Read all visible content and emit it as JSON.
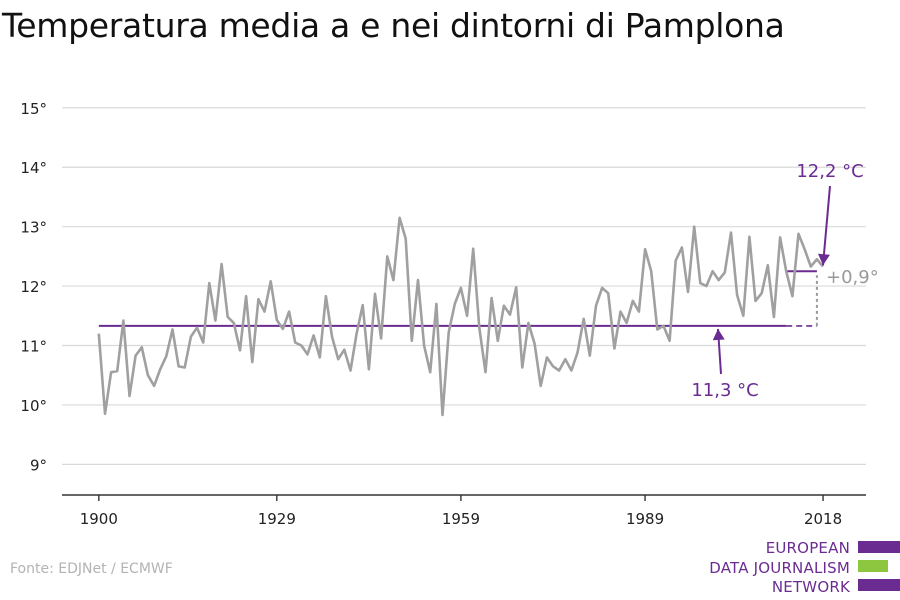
{
  "title": "Temperatura media a e nei dintorni di Pamplona",
  "source": "Fonte: EDJNet / ECMWF",
  "logo": {
    "lines": [
      "EUROPEAN",
      "DATA JOURNALISM",
      "NETWORK"
    ],
    "color_purple": "#6b2c91",
    "color_green": "#8dc63f"
  },
  "annotations": {
    "recent_avg": "12,2 °C",
    "base_avg": "11,3 °C",
    "delta": "+0,9°"
  },
  "colors": {
    "line": "#a0a0a0",
    "avg": "#6b2c91",
    "grid": "#d9d9d9",
    "axis": "#333333",
    "delta": "#999999"
  },
  "chart_data": {
    "type": "line",
    "x": [
      1900,
      1901,
      1902,
      1903,
      1904,
      1905,
      1906,
      1907,
      1908,
      1909,
      1910,
      1911,
      1912,
      1913,
      1914,
      1915,
      1916,
      1917,
      1918,
      1919,
      1920,
      1921,
      1922,
      1923,
      1924,
      1925,
      1926,
      1927,
      1928,
      1929,
      1930,
      1931,
      1932,
      1933,
      1934,
      1935,
      1936,
      1937,
      1938,
      1939,
      1940,
      1941,
      1942,
      1943,
      1944,
      1945,
      1946,
      1947,
      1948,
      1949,
      1950,
      1951,
      1952,
      1953,
      1954,
      1955,
      1956,
      1957,
      1958,
      1959,
      1960,
      1961,
      1962,
      1963,
      1964,
      1965,
      1966,
      1967,
      1968,
      1969,
      1970,
      1971,
      1972,
      1973,
      1974,
      1975,
      1976,
      1977,
      1978,
      1979,
      1980,
      1981,
      1982,
      1983,
      1984,
      1985,
      1986,
      1987,
      1988,
      1989,
      1990,
      1991,
      1992,
      1993,
      1994,
      1995,
      1996,
      1997,
      1998,
      1999,
      2000,
      2001,
      2002,
      2003,
      2004,
      2005,
      2006,
      2007,
      2008,
      2009,
      2010,
      2011,
      2012,
      2013,
      2014,
      2015,
      2016,
      2017,
      2018
    ],
    "series": [
      {
        "values": [
          11.2,
          9.85,
          10.55,
          10.57,
          11.42,
          10.15,
          10.83,
          10.97,
          10.5,
          10.32,
          10.6,
          10.82,
          11.27,
          10.65,
          10.63,
          11.15,
          11.3,
          11.05,
          12.05,
          11.42,
          12.37,
          11.48,
          11.38,
          10.92,
          11.83,
          10.72,
          11.78,
          11.57,
          12.08,
          11.43,
          11.28,
          11.57,
          11.05,
          11.0,
          10.85,
          11.17,
          10.8,
          11.83,
          11.15,
          10.77,
          10.93,
          10.58,
          11.2,
          11.68,
          10.6,
          11.87,
          11.12,
          12.5,
          12.1,
          13.15,
          12.8,
          11.08,
          12.1,
          11.0,
          10.55,
          11.7,
          9.83,
          11.22,
          11.7,
          11.97,
          11.5,
          12.63,
          11.3,
          10.55,
          11.8,
          11.08,
          11.67,
          11.52,
          11.98,
          10.63,
          11.38,
          11.03,
          10.32,
          10.8,
          10.65,
          10.58,
          10.77,
          10.58,
          10.88,
          11.45,
          10.83,
          11.67,
          11.97,
          11.88,
          10.95,
          11.57,
          11.38,
          11.75,
          11.57,
          12.62,
          12.25,
          11.27,
          11.33,
          11.08,
          12.43,
          12.65,
          11.9,
          13.0,
          12.05,
          12.0,
          12.25,
          12.1,
          12.23,
          12.9,
          11.85,
          11.5,
          12.83,
          11.75,
          11.88,
          12.35,
          11.48,
          12.82,
          12.25,
          11.83,
          12.88,
          12.62,
          12.33,
          12.45,
          12.33
        ]
      }
    ],
    "averages": [
      {
        "label": "11,3 °C",
        "value": 11.33,
        "x_start": 1900,
        "x_end": 2012,
        "dashed_to": 2017
      },
      {
        "label": "12,2 °C",
        "value": 12.25,
        "x_start": 2012,
        "x_end": 2017
      }
    ],
    "xticks": [
      1900,
      1929,
      1959,
      1989,
      2018
    ],
    "xticklabels": [
      "1900",
      "1929",
      "1959",
      "1989",
      "2018"
    ],
    "yticks": [
      9,
      10,
      11,
      12,
      13,
      14,
      15
    ],
    "yticklabels": [
      "9°",
      "10°",
      "11°",
      "12°",
      "13°",
      "14°",
      "15°"
    ],
    "xlim": [
      1894,
      2025
    ],
    "ylim": [
      8.4,
      15.3
    ],
    "grid": true
  }
}
